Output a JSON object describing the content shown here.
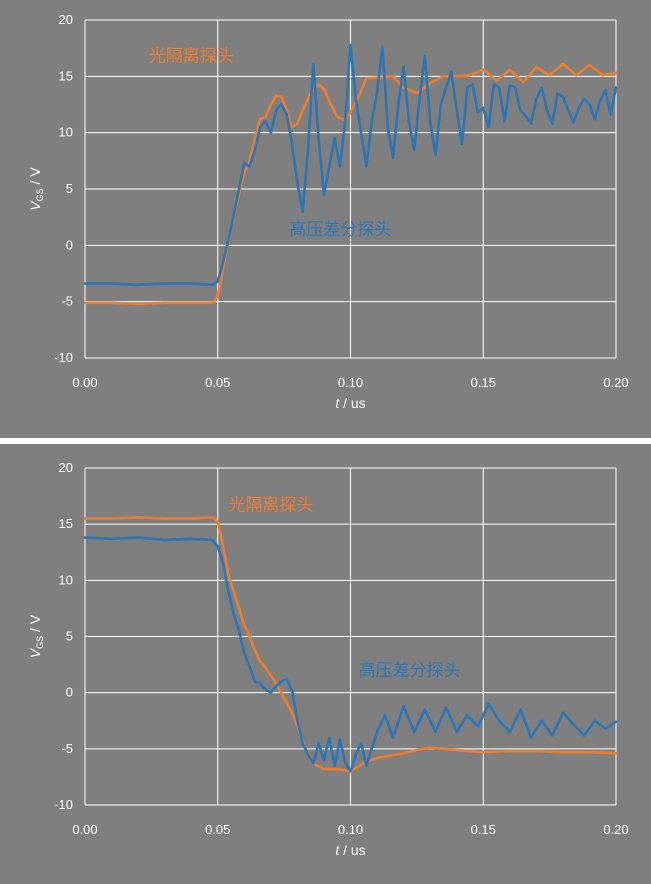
{
  "chart_data": [
    {
      "type": "line",
      "xlabel": "t / us",
      "ylabel": "VGS / V",
      "xlabel_parts": {
        "var": "t",
        "rest": " / us"
      },
      "ylabel_parts": {
        "var": "V",
        "sub": "GS",
        "rest": " / V"
      },
      "xlim": [
        0,
        0.2
      ],
      "ylim": [
        -10,
        20
      ],
      "x_ticks": [
        "0.00",
        "0.05",
        "0.10",
        "0.15",
        "0.20"
      ],
      "y_ticks": [
        "-10",
        "-5",
        "0",
        "5",
        "10",
        "15",
        "20"
      ],
      "grid": true,
      "series": [
        {
          "name": "光隔离探头",
          "color": "#ed7d31",
          "x": [
            0,
            0.01,
            0.02,
            0.03,
            0.04,
            0.048,
            0.05,
            0.052,
            0.055,
            0.058,
            0.06,
            0.062,
            0.064,
            0.066,
            0.068,
            0.07,
            0.072,
            0.074,
            0.076,
            0.078,
            0.08,
            0.082,
            0.085,
            0.088,
            0.09,
            0.092,
            0.095,
            0.098,
            0.1,
            0.103,
            0.106,
            0.11,
            0.113,
            0.116,
            0.12,
            0.125,
            0.13,
            0.135,
            0.14,
            0.145,
            0.15,
            0.155,
            0.16,
            0.165,
            0.17,
            0.175,
            0.18,
            0.185,
            0.19,
            0.195,
            0.2
          ],
          "y": [
            -5.1,
            -5.1,
            -5.2,
            -5.1,
            -5.1,
            -5.1,
            -4.5,
            -2.0,
            1.5,
            4.5,
            6.5,
            7.5,
            9.5,
            11.2,
            11.4,
            12.5,
            13.3,
            13.2,
            12.0,
            10.5,
            10.8,
            12.0,
            13.5,
            14.3,
            13.9,
            12.8,
            11.4,
            11.1,
            11.8,
            13.2,
            14.8,
            14.9,
            14.9,
            15.0,
            14.0,
            13.5,
            14.4,
            15.0,
            15.0,
            15.1,
            15.6,
            14.6,
            15.6,
            14.5,
            15.8,
            15.1,
            16.1,
            15.1,
            16.0,
            15.1,
            15.3
          ]
        },
        {
          "name": "高压差分探头",
          "color": "#2e75b6",
          "x": [
            0,
            0.01,
            0.02,
            0.03,
            0.04,
            0.048,
            0.05,
            0.052,
            0.055,
            0.058,
            0.06,
            0.062,
            0.064,
            0.066,
            0.068,
            0.07,
            0.072,
            0.074,
            0.076,
            0.078,
            0.08,
            0.082,
            0.084,
            0.086,
            0.088,
            0.09,
            0.092,
            0.094,
            0.096,
            0.098,
            0.1,
            0.102,
            0.104,
            0.106,
            0.108,
            0.11,
            0.112,
            0.114,
            0.116,
            0.118,
            0.12,
            0.122,
            0.124,
            0.126,
            0.128,
            0.13,
            0.132,
            0.134,
            0.136,
            0.138,
            0.14,
            0.142,
            0.144,
            0.146,
            0.148,
            0.15,
            0.152,
            0.154,
            0.156,
            0.158,
            0.16,
            0.162,
            0.164,
            0.166,
            0.168,
            0.17,
            0.172,
            0.174,
            0.176,
            0.178,
            0.18,
            0.182,
            0.184,
            0.186,
            0.188,
            0.19,
            0.192,
            0.194,
            0.196,
            0.198,
            0.2
          ],
          "y": [
            -3.4,
            -3.4,
            -3.5,
            -3.4,
            -3.4,
            -3.5,
            -3.2,
            -1.5,
            1.5,
            5.0,
            7.3,
            7.0,
            8.5,
            10.5,
            11.0,
            10.0,
            12.0,
            12.5,
            11.6,
            9.0,
            5.5,
            3.0,
            8.5,
            16.1,
            9.5,
            4.5,
            7.0,
            9.5,
            7.0,
            11.0,
            17.8,
            13.0,
            10.0,
            7.0,
            11.0,
            13.5,
            17.6,
            10.5,
            7.8,
            12.5,
            15.8,
            11.0,
            8.5,
            13.0,
            16.8,
            11.0,
            8.0,
            12.5,
            14.0,
            15.4,
            12.0,
            9.0,
            14.0,
            14.3,
            11.8,
            12.2,
            10.5,
            14.3,
            14.0,
            11.0,
            14.2,
            14.0,
            12.0,
            11.5,
            10.8,
            13.0,
            14.0,
            12.0,
            10.8,
            13.5,
            13.2,
            12.0,
            10.9,
            12.2,
            13.0,
            12.5,
            11.2,
            12.8,
            13.8,
            11.6,
            14.0
          ]
        }
      ],
      "annotations": [
        {
          "text": "光隔离探头",
          "color": "#ed7d31",
          "x": 0.024,
          "y": 16.3
        },
        {
          "text": "高压差分探头",
          "color": "#2e75b6",
          "x": 0.077,
          "y": 0.9
        }
      ]
    },
    {
      "type": "line",
      "xlabel": "t / us",
      "ylabel": "VGS / V",
      "xlabel_parts": {
        "var": "t",
        "rest": " / us"
      },
      "ylabel_parts": {
        "var": "V",
        "sub": "GS",
        "rest": " / V"
      },
      "xlim": [
        0,
        0.2
      ],
      "ylim": [
        -10,
        20
      ],
      "x_ticks": [
        "0.00",
        "0.05",
        "0.10",
        "0.15",
        "0.20"
      ],
      "y_ticks": [
        "-10",
        "-5",
        "0",
        "5",
        "10",
        "15",
        "20"
      ],
      "grid": true,
      "series": [
        {
          "name": "光隔离探头",
          "color": "#ed7d31",
          "x": [
            0,
            0.01,
            0.02,
            0.03,
            0.04,
            0.048,
            0.05,
            0.052,
            0.054,
            0.056,
            0.058,
            0.06,
            0.062,
            0.064,
            0.066,
            0.068,
            0.07,
            0.072,
            0.075,
            0.078,
            0.08,
            0.083,
            0.086,
            0.09,
            0.095,
            0.1,
            0.105,
            0.11,
            0.115,
            0.12,
            0.125,
            0.13,
            0.14,
            0.15,
            0.16,
            0.17,
            0.18,
            0.19,
            0.2
          ],
          "y": [
            15.5,
            15.5,
            15.6,
            15.5,
            15.5,
            15.6,
            15.2,
            13.0,
            10.5,
            9.0,
            7.5,
            6.0,
            5.0,
            3.8,
            2.8,
            2.2,
            1.5,
            0.8,
            -0.5,
            -1.8,
            -3.0,
            -5.0,
            -6.3,
            -6.8,
            -6.8,
            -7.0,
            -6.3,
            -5.8,
            -5.6,
            -5.4,
            -5.1,
            -4.9,
            -5.1,
            -5.3,
            -5.2,
            -5.2,
            -5.3,
            -5.3,
            -5.4
          ]
        },
        {
          "name": "高压差分探头",
          "color": "#2e75b6",
          "x": [
            0,
            0.01,
            0.02,
            0.03,
            0.04,
            0.048,
            0.05,
            0.052,
            0.054,
            0.056,
            0.058,
            0.06,
            0.062,
            0.064,
            0.066,
            0.068,
            0.07,
            0.072,
            0.074,
            0.076,
            0.078,
            0.08,
            0.082,
            0.084,
            0.086,
            0.088,
            0.09,
            0.092,
            0.094,
            0.096,
            0.098,
            0.1,
            0.102,
            0.104,
            0.106,
            0.108,
            0.11,
            0.113,
            0.116,
            0.12,
            0.124,
            0.128,
            0.132,
            0.136,
            0.14,
            0.144,
            0.148,
            0.152,
            0.156,
            0.16,
            0.164,
            0.168,
            0.172,
            0.176,
            0.18,
            0.184,
            0.188,
            0.192,
            0.196,
            0.2
          ],
          "y": [
            13.8,
            13.7,
            13.8,
            13.6,
            13.7,
            13.6,
            13.0,
            11.5,
            9.0,
            7.0,
            5.5,
            3.5,
            2.3,
            1.0,
            0.8,
            0.3,
            0.0,
            0.6,
            1.0,
            1.2,
            0.2,
            -2.5,
            -4.5,
            -5.5,
            -6.3,
            -4.5,
            -6.0,
            -4.0,
            -6.5,
            -4.2,
            -6.2,
            -7.0,
            -5.5,
            -4.5,
            -6.5,
            -5.0,
            -3.5,
            -2.0,
            -4.0,
            -1.2,
            -3.5,
            -1.5,
            -3.5,
            -1.3,
            -3.5,
            -2.0,
            -3.0,
            -1.0,
            -2.5,
            -3.5,
            -1.5,
            -4.0,
            -2.5,
            -3.8,
            -1.8,
            -2.8,
            -3.8,
            -2.5,
            -3.2,
            -2.6
          ]
        }
      ],
      "annotations": [
        {
          "text": "光隔离探头",
          "color": "#ed7d31",
          "x": 0.054,
          "y": 16.2
        },
        {
          "text": "高压差分探头",
          "color": "#2e75b6",
          "x": 0.103,
          "y": 1.5
        }
      ]
    }
  ]
}
